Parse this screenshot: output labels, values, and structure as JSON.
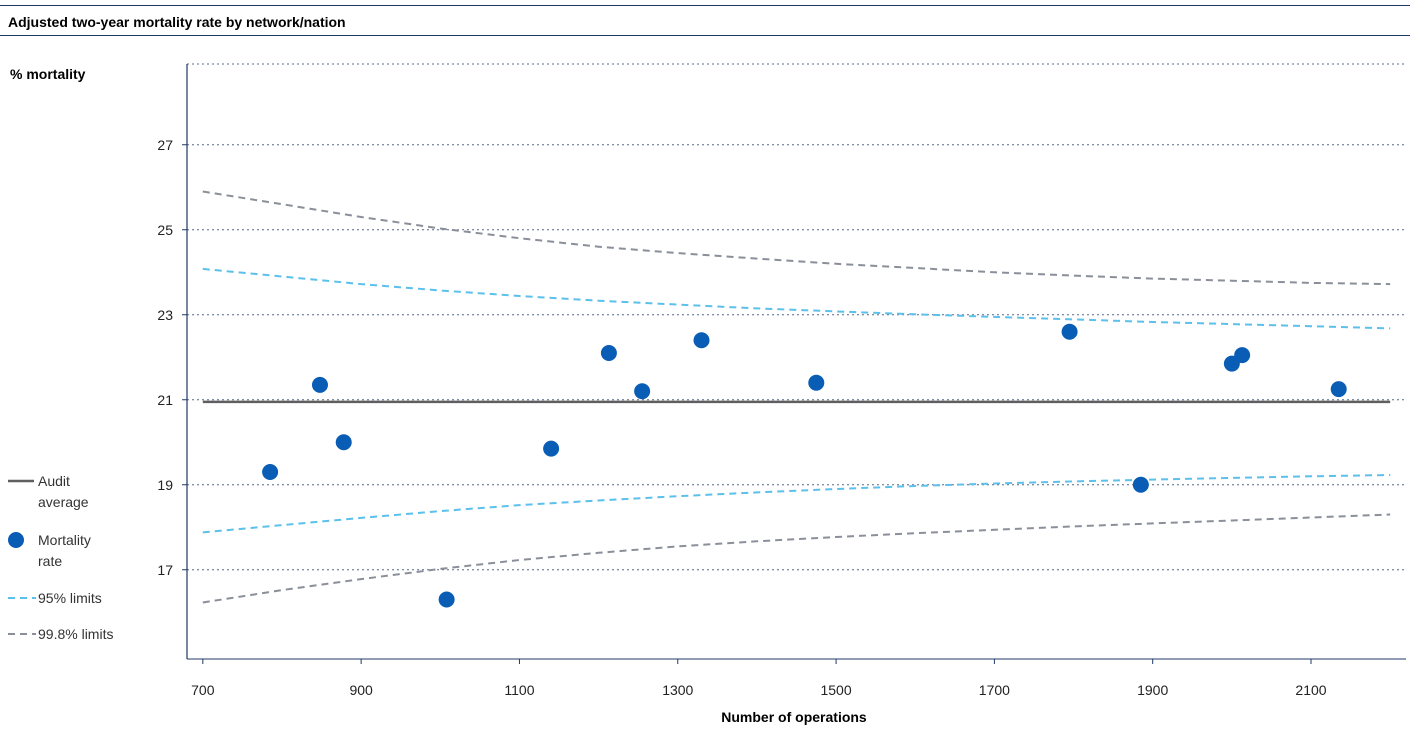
{
  "chart_data": {
    "type": "scatter",
    "title": "Adjusted two-year mortality rate by network/nation",
    "ylabel": "% mortality",
    "xlabel": "Number of operations",
    "xlim": [
      680,
      2220
    ],
    "ylim": [
      14.9,
      28.9
    ],
    "xticks": [
      700,
      900,
      1100,
      1300,
      1500,
      1700,
      1900,
      2100
    ],
    "yticks": [
      17,
      19,
      21,
      23,
      25,
      27
    ],
    "grid": "horizontal dotted",
    "audit_average": 20.95,
    "series": [
      {
        "name": "Mortality rate",
        "points": [
          {
            "x": 785,
            "y": 19.3
          },
          {
            "x": 848,
            "y": 21.35
          },
          {
            "x": 878,
            "y": 20.0
          },
          {
            "x": 1008,
            "y": 16.3
          },
          {
            "x": 1140,
            "y": 19.85
          },
          {
            "x": 1213,
            "y": 22.1
          },
          {
            "x": 1255,
            "y": 21.2
          },
          {
            "x": 1330,
            "y": 22.4
          },
          {
            "x": 1475,
            "y": 21.4
          },
          {
            "x": 1795,
            "y": 22.6
          },
          {
            "x": 1885,
            "y": 19.0
          },
          {
            "x": 2000,
            "y": 21.85
          },
          {
            "x": 2013,
            "y": 22.05
          },
          {
            "x": 2135,
            "y": 21.25
          }
        ]
      }
    ],
    "limits": {
      "x": [
        700,
        800,
        900,
        1000,
        1100,
        1200,
        1300,
        1400,
        1500,
        1600,
        1700,
        1800,
        1900,
        2000,
        2100,
        2200
      ],
      "upper_95": [
        24.08,
        23.9,
        23.72,
        23.57,
        23.44,
        23.33,
        23.24,
        23.15,
        23.08,
        23.01,
        22.95,
        22.89,
        22.83,
        22.78,
        22.73,
        22.68
      ],
      "lower_95": [
        17.88,
        18.05,
        18.22,
        18.38,
        18.52,
        18.63,
        18.73,
        18.82,
        18.9,
        18.97,
        19.03,
        19.08,
        19.12,
        19.16,
        19.2,
        19.23
      ],
      "upper_998": [
        25.9,
        25.6,
        25.3,
        25.03,
        24.8,
        24.6,
        24.45,
        24.32,
        24.2,
        24.1,
        24.0,
        23.92,
        23.85,
        23.8,
        23.75,
        23.72
      ],
      "lower_998": [
        16.23,
        16.52,
        16.78,
        17.02,
        17.23,
        17.4,
        17.55,
        17.67,
        17.77,
        17.86,
        17.94,
        18.02,
        18.09,
        18.16,
        18.23,
        18.3
      ]
    },
    "legend": {
      "placement": "left",
      "entries": [
        {
          "label": "Audit average",
          "line1": "Audit",
          "line2": "average",
          "style": "solid",
          "color": "#5f5f5f"
        },
        {
          "label": "Mortality rate",
          "line1": "Mortality",
          "line2": "rate",
          "style": "dot",
          "color": "#0a5db5"
        },
        {
          "label": "95% limits",
          "line1": "95% limits",
          "line2": "",
          "style": "dashed",
          "color": "#5bc0eb"
        },
        {
          "label": "99.8% limits",
          "line1": "99.8% limits",
          "line2": "",
          "style": "dashed",
          "color": "#8a8f99"
        }
      ]
    },
    "colors": {
      "points": "#0a5db5",
      "average": "#5f5f5f",
      "limit95": "#5bc0eb",
      "limit998": "#8a8f99",
      "grid": "#1f3864",
      "axis": "#1f3864"
    }
  }
}
